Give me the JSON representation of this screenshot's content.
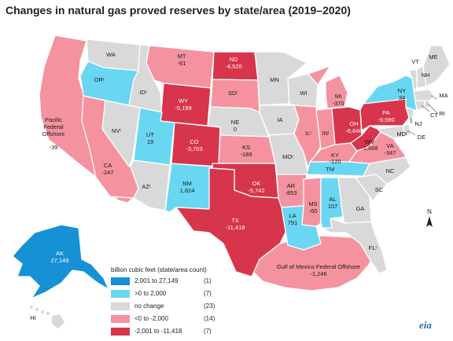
{
  "title": "Changes in natural gas proved reserves by state/area (2019–2020)",
  "colors": {
    "cat1": "#1691d3",
    "cat2": "#6ad7f2",
    "cat3": "#d9d9d9",
    "cat4": "#f4939f",
    "cat5": "#d7354b"
  },
  "labels": {
    "WA": "WA",
    "OR": "ORᵗ",
    "CA": "CA",
    "CA_v": "-247",
    "NV": "NVᵗ",
    "ID": "IDᵗ",
    "MT": "MT",
    "MT_v": "-61",
    "WY": "WY",
    "WY_v": "-5,199",
    "UT": "UT",
    "UT_v": "19",
    "AZ": "AZᵗ",
    "CO": "CO",
    "CO_v": "-3,703",
    "NM": "NM",
    "NM_v": "1,824",
    "ND": "ND",
    "ND_v": "-4,520",
    "SD": "SDᵗ",
    "NE": "NE",
    "NE_v": "0",
    "KS": "KS",
    "KS_v": "-189",
    "OK": "OK",
    "OK_v": "-5,742",
    "TX": "TX",
    "TX_v": "-11,418",
    "MN": "MN",
    "IA": "IA",
    "MO": "MOᵗ",
    "AR": "AR",
    "AR_v": "-853",
    "LA": "LA",
    "LA_v": "791",
    "WI": "WI",
    "IL": "ILᵗ",
    "IN": "INᵗ",
    "MI": "MI",
    "MI_v": "-370",
    "OH": "OH",
    "OH_v": "-6,648",
    "KY": "KY",
    "KY_v": "-120",
    "TN": "TNᵗ",
    "MS": "MS",
    "MS_v": "-60",
    "AL": "AL",
    "AL_v": "107",
    "GA": "GA",
    "FL": "FLᵗ",
    "SC": "SC",
    "NC": "NC",
    "VA": "VA",
    "VA_v": "-347",
    "WV": "WV",
    "WV_v": "-1,668",
    "PA": "PA",
    "PA_v": "-9,590",
    "NY": "NY",
    "NY_v": "34",
    "MD": "MDᵗ",
    "DE": "DE",
    "NJ": "NJ",
    "CT": "CT",
    "RI": "RI",
    "MA": "MA",
    "VT": "VT",
    "NH": "NH",
    "ME": "ME",
    "AK": "AK",
    "AK_v": "27,149",
    "HI": "HI",
    "pacific_1": "Pacific",
    "pacific_2": "Federal",
    "pacific_3": "Offshore",
    "pacific_v": "-39",
    "gom": "Gulf of Mexico Federal Offshore",
    "gom_v": "-1,246"
  },
  "legend": {
    "title": "billion cubic feet (state/area count)",
    "items": [
      {
        "range": "2,001 to 27,149",
        "count": "(1)"
      },
      {
        "range": ">0 to 2,000",
        "count": "(7)"
      },
      {
        "range": "no change",
        "count": "(23)"
      },
      {
        "range": "<0 to -2,000",
        "count": "(14)"
      },
      {
        "range": "-2,001 to -11,418",
        "count": "(7)"
      }
    ]
  },
  "compass_label": "N",
  "logo": "eia"
}
